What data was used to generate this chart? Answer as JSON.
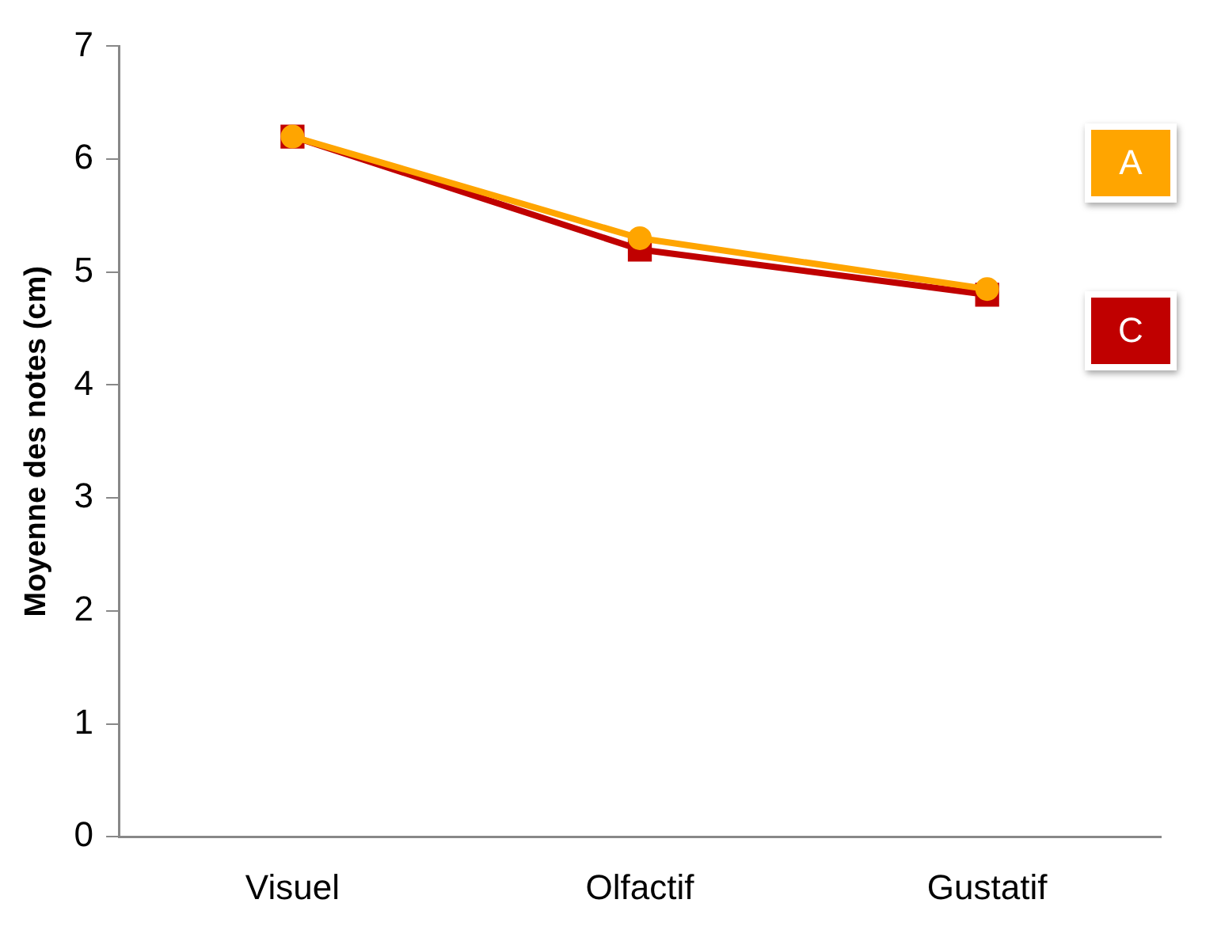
{
  "chart_data": {
    "type": "line",
    "ylabel": "Moyenne des notes (cm)",
    "categories": [
      "Visuel",
      "Olfactif",
      "Gustatif"
    ],
    "series": [
      {
        "name": "A",
        "color": "#ffa500",
        "marker": "circle",
        "values": [
          6.2,
          5.3,
          4.85
        ]
      },
      {
        "name": "C",
        "color": "#c00000",
        "marker": "square",
        "values": [
          6.2,
          5.2,
          4.8
        ]
      }
    ],
    "ylim": [
      0,
      7
    ],
    "yticks": [
      0,
      1,
      2,
      3,
      4,
      5,
      6,
      7
    ],
    "grid": false,
    "legend": "right"
  }
}
